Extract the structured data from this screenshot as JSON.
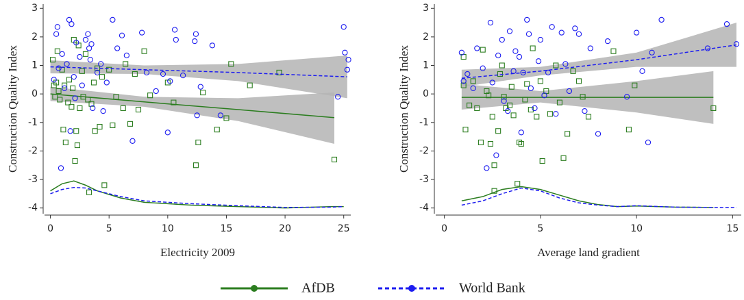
{
  "chart_data": [
    {
      "type": "scatter",
      "xlabel": "Electricity 2009",
      "ylabel": "Construction Quality Index",
      "xlim": [
        -0.5,
        25.6
      ],
      "ylim": [
        -4.2,
        3.15
      ],
      "xticks": [
        0,
        5,
        10,
        15,
        20,
        25
      ],
      "yticks": [
        -4,
        -3,
        -2,
        -1,
        0,
        1,
        2,
        3
      ],
      "series": [
        {
          "name": "AfDB",
          "color": "#2b7d1f",
          "marker": "square",
          "x": [
            0.2,
            0.3,
            0.4,
            0.5,
            0.6,
            0.7,
            0.8,
            1,
            1.1,
            1.2,
            1.3,
            1.5,
            1.6,
            1.8,
            1.9,
            2,
            2.1,
            2.2,
            2.3,
            2.4,
            2.5,
            2.7,
            2.8,
            3,
            3.2,
            3.3,
            3.5,
            3.7,
            3.8,
            4,
            4.2,
            4.4,
            4.6,
            5,
            5.3,
            5.6,
            6.2,
            6.4,
            6.8,
            7.2,
            7.5,
            8,
            8.5,
            10,
            10.5,
            12.4,
            12.6,
            13,
            14.2,
            15,
            15.4,
            17,
            19.5,
            24.2
          ],
          "values": [
            1.2,
            0.3,
            -0.1,
            0.4,
            1.5,
            0.1,
            -0.2,
            0.85,
            -1.25,
            0.3,
            -1.7,
            -0.3,
            0.5,
            -0.45,
            0.2,
            1.9,
            -2.35,
            -1.3,
            -1.8,
            1.7,
            -0.5,
            0.8,
            -0.1,
            1.4,
            -0.2,
            -3.45,
            -0.35,
            0.4,
            -1.3,
            0.9,
            -1.15,
            0.6,
            -3.2,
            0.85,
            -1.1,
            -0.1,
            -0.5,
            1.05,
            -1.05,
            0.7,
            -0.55,
            1.5,
            -0.05,
            0.4,
            -0.3,
            -2.5,
            -1.7,
            0.05,
            -1.25,
            -0.85,
            1.05,
            0.3,
            0.75,
            -2.3
          ],
          "fit": {
            "x": [
              0,
              8,
              16,
              24.2
            ],
            "values": [
              0,
              -0.28,
              -0.55,
              -0.83
            ],
            "lower": [
              -0.25,
              -0.45,
              -0.95,
              -1.75
            ],
            "upper": [
              0.25,
              -0.1,
              -0.15,
              0.05
            ]
          },
          "density": {
            "x": [
              0,
              1,
              2,
              3,
              4,
              6,
              8,
              12,
              16,
              20,
              24,
              25
            ],
            "values": [
              -3.4,
              -3.15,
              -3.05,
              -3.2,
              -3.4,
              -3.65,
              -3.8,
              -3.9,
              -3.95,
              -4.0,
              -3.95,
              -3.95
            ]
          }
        },
        {
          "name": "World Bank",
          "color": "#1c1cf0",
          "marker": "circle",
          "x": [
            0.3,
            0.5,
            0.6,
            0.7,
            0.9,
            1,
            1.2,
            1.4,
            1.6,
            1.7,
            1.8,
            2,
            2.1,
            2.2,
            2.5,
            2.7,
            3,
            3.2,
            3.3,
            3.4,
            3.5,
            3.6,
            4,
            4.3,
            4.5,
            4.8,
            5.3,
            5.7,
            6.1,
            6.5,
            7,
            7.8,
            8.2,
            9,
            9.6,
            10,
            10.2,
            10.6,
            10.7,
            11.3,
            12.3,
            12.4,
            12.5,
            12.8,
            13.8,
            14.5,
            24.5,
            25,
            25.1,
            25.4,
            25.3
          ],
          "values": [
            0.5,
            2.1,
            2.35,
            0.9,
            -2.6,
            1.4,
            0.2,
            1.05,
            2.6,
            -1.3,
            2.45,
            0.6,
            -0.15,
            1.8,
            1.3,
            0.3,
            1.9,
            2.1,
            1.6,
            1.2,
            1.75,
            -0.5,
            0.75,
            1.05,
            -0.6,
            0.4,
            2.6,
            1.6,
            2.05,
            1.35,
            -1.65,
            2.15,
            0.75,
            0.1,
            0.7,
            -1.35,
            0.45,
            2.25,
            1.9,
            0.65,
            1.85,
            2.1,
            -0.75,
            0.25,
            1.7,
            -0.75,
            -0.1,
            2.35,
            1.45,
            1.2,
            0.85
          ],
          "fit": {
            "x": [
              0,
              8,
              16,
              25.3
            ],
            "values": [
              0.95,
              0.85,
              0.75,
              0.6
            ],
            "lower": [
              0.72,
              0.7,
              0.45,
              -0.15
            ],
            "upper": [
              1.18,
              1.0,
              1.05,
              1.35
            ]
          },
          "density": {
            "x": [
              0,
              1,
              2,
              3,
              4,
              6,
              8,
              12,
              16,
              20,
              24,
              25
            ],
            "values": [
              -3.5,
              -3.35,
              -3.28,
              -3.3,
              -3.4,
              -3.6,
              -3.75,
              -3.85,
              -3.92,
              -3.98,
              -3.97,
              -3.95
            ]
          }
        }
      ]
    },
    {
      "type": "scatter",
      "xlabel": "Average land gradient",
      "ylabel": "Construction Quality Index",
      "xlim": [
        -0.45,
        15.45
      ],
      "ylim": [
        -4.2,
        3.15
      ],
      "xticks": [
        0,
        5,
        10,
        15
      ],
      "yticks": [
        -4,
        -3,
        -2,
        -1,
        0,
        1,
        2,
        3
      ],
      "series": [
        {
          "name": "AfDB",
          "color": "#2b7d1f",
          "marker": "square",
          "x": [
            1,
            1,
            1.1,
            1.3,
            1.5,
            1.7,
            1.9,
            2,
            2.2,
            2.3,
            2.4,
            2.5,
            2.6,
            2.8,
            2.9,
            3,
            3.1,
            3.2,
            3.4,
            3.5,
            3.6,
            3.8,
            3.9,
            4,
            4.2,
            4.3,
            4.5,
            4.6,
            4.8,
            5,
            5.1,
            5.3,
            5.5,
            5.8,
            6,
            6.2,
            6.4,
            6.7,
            7,
            7.2,
            7.5,
            8.8,
            9.6,
            9.9,
            14,
            2.6
          ],
          "values": [
            0.3,
            1.3,
            -1.25,
            -0.4,
            0.45,
            -0.5,
            -1.7,
            1.55,
            0.1,
            -0.05,
            -1.75,
            -0.8,
            -2.5,
            -1.3,
            0.7,
            1.0,
            -0.1,
            -0.5,
            -0.4,
            0.25,
            -0.75,
            -3.15,
            -1.7,
            -1.75,
            -0.2,
            0.35,
            -0.55,
            1.6,
            -0.8,
            0.45,
            -2.35,
            0.1,
            -0.7,
            1.0,
            -0.3,
            -2.25,
            -1.4,
            0.8,
            0.45,
            -0.1,
            -0.8,
            1.5,
            -1.25,
            0.3,
            -0.5,
            -3.4
          ],
          "fit": {
            "x": [
              0.9,
              5,
              10,
              14
            ],
            "values": [
              -0.12,
              -0.12,
              -0.12,
              -0.12
            ],
            "lower": [
              -0.55,
              -0.3,
              -0.65,
              -1.05
            ],
            "upper": [
              0.35,
              0.1,
              0.45,
              0.8
            ]
          },
          "density": {
            "x": [
              0.9,
              2,
              3,
              4,
              5,
              6,
              7,
              8,
              9,
              10,
              12,
              14
            ],
            "values": [
              -3.75,
              -3.6,
              -3.35,
              -3.25,
              -3.35,
              -3.55,
              -3.75,
              -3.88,
              -3.95,
              -3.93,
              -3.97,
              -3.98
            ]
          }
        },
        {
          "name": "World Bank",
          "color": "#1c1cf0",
          "marker": "circle",
          "x": [
            0.9,
            1,
            1.2,
            1.5,
            1.7,
            2,
            2.2,
            2.4,
            2.5,
            2.7,
            2.8,
            3,
            3.1,
            3.3,
            3.4,
            3.6,
            3.7,
            3.9,
            4,
            4.1,
            4.3,
            4.4,
            4.5,
            4.7,
            4.9,
            5,
            5.2,
            5.4,
            5.6,
            5.8,
            6.1,
            6.3,
            6.5,
            6.8,
            7,
            7.3,
            7.6,
            8,
            8.5,
            9.5,
            10,
            10.3,
            10.6,
            10.8,
            11.3,
            13.7,
            14.7,
            15.2
          ],
          "values": [
            1.45,
            0.45,
            0.7,
            0.2,
            1.6,
            0.9,
            -2.6,
            2.5,
            0.4,
            -2.15,
            1.35,
            1.9,
            -0.25,
            -0.6,
            2.2,
            0.8,
            1.5,
            1.3,
            -1.35,
            0.75,
            2.6,
            2.1,
            0.2,
            -0.5,
            1.15,
            1.9,
            -0.05,
            0.75,
            2.35,
            -0.7,
            2.15,
            1.05,
            0.1,
            2.3,
            2.1,
            -0.6,
            1.6,
            -1.4,
            1.85,
            -0.1,
            2.15,
            0.8,
            -1.7,
            1.45,
            2.6,
            1.6,
            2.45,
            1.75
          ],
          "fit": {
            "x": [
              0.9,
              5,
              10,
              15.2
            ],
            "values": [
              0.55,
              0.8,
              1.2,
              1.72
            ],
            "lower": [
              0.25,
              0.65,
              0.95,
              0.95
            ],
            "upper": [
              0.85,
              0.95,
              1.45,
              2.5
            ]
          },
          "density": {
            "x": [
              0.9,
              2,
              3,
              4,
              5,
              6,
              7,
              8,
              9,
              10,
              12,
              14,
              15.2
            ],
            "values": [
              -3.9,
              -3.75,
              -3.5,
              -3.3,
              -3.4,
              -3.65,
              -3.82,
              -3.9,
              -3.95,
              -3.92,
              -3.97,
              -3.98,
              -3.98
            ]
          }
        }
      ]
    }
  ]
}
